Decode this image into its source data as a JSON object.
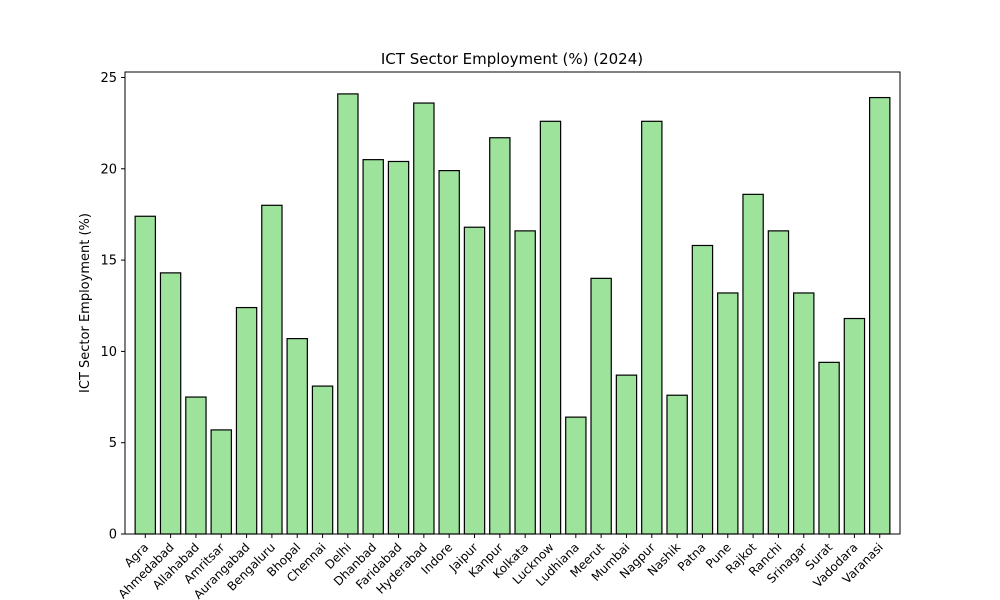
{
  "chart_data": {
    "type": "bar",
    "title": "ICT Sector Employment (%) (2024)",
    "xlabel": "",
    "ylabel": "ICT Sector Employment (%)",
    "ylim": [
      0,
      25.3
    ],
    "yticks": [
      0,
      5,
      10,
      15,
      20,
      25
    ],
    "grid": false,
    "legend": "none",
    "bar_color": "#9de39c",
    "edge_color": "#000000",
    "categories": [
      "Agra",
      "Ahmedabad",
      "Allahabad",
      "Amritsar",
      "Aurangabad",
      "Bengaluru",
      "Bhopal",
      "Chennai",
      "Delhi",
      "Dhanbad",
      "Faridabad",
      "Hyderabad",
      "Indore",
      "Jaipur",
      "Kanpur",
      "Kolkata",
      "Lucknow",
      "Ludhiana",
      "Meerut",
      "Mumbai",
      "Nagpur",
      "Nashik",
      "Patna",
      "Pune",
      "Rajkot",
      "Ranchi",
      "Srinagar",
      "Surat",
      "Vadodara",
      "Varanasi"
    ],
    "values": [
      17.4,
      14.3,
      7.5,
      5.7,
      12.4,
      18.0,
      10.7,
      8.1,
      24.1,
      20.5,
      20.4,
      23.6,
      19.9,
      16.8,
      21.7,
      16.6,
      22.6,
      6.4,
      14.0,
      8.7,
      22.6,
      7.6,
      15.8,
      13.2,
      18.6,
      16.6,
      13.2,
      9.4,
      11.8,
      23.9
    ]
  }
}
